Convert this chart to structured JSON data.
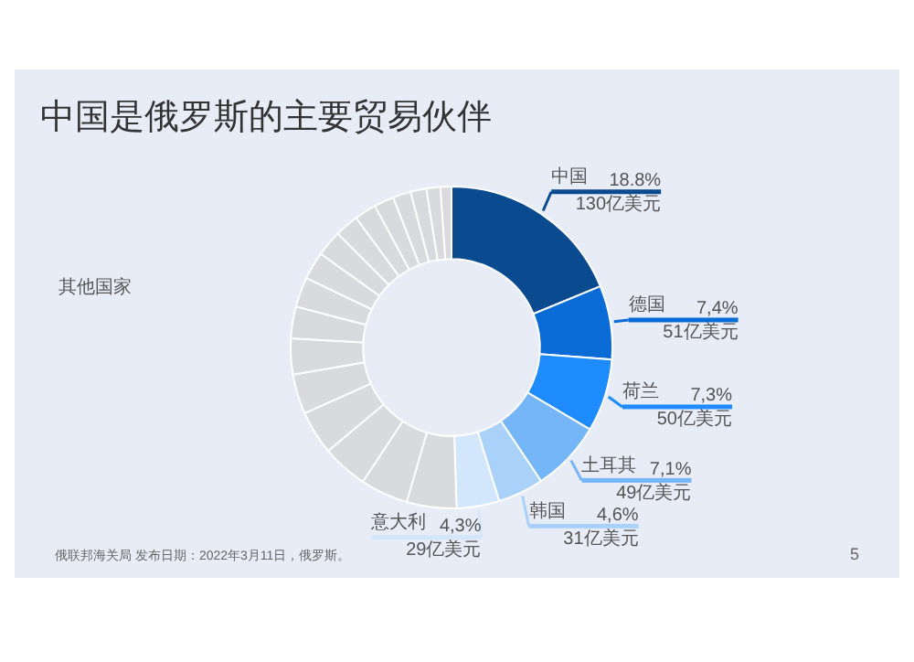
{
  "chart_data": {
    "type": "donut",
    "title": "中国是俄罗斯的主要贸易伙伴",
    "categories": [
      "中国",
      "德国",
      "荷兰",
      "土耳其",
      "韩国",
      "意大利",
      null,
      null,
      null,
      null,
      null,
      null,
      null,
      null,
      null,
      null,
      null,
      null,
      null,
      null,
      null,
      null,
      null
    ],
    "values": [
      18.8,
      7.4,
      7.3,
      7.1,
      4.6,
      4.3,
      5.0,
      4.8,
      4.6,
      4.4,
      4.0,
      3.6,
      3.2,
      3.0,
      2.8,
      2.6,
      2.4,
      2.2,
      2.0,
      1.8,
      1.6,
      1.4,
      1.1
    ],
    "colors": [
      "#0a4a8f",
      "#0a6ad6",
      "#1e8cff",
      "#74b6f7",
      "#a9d1f9",
      "#d2e7fb",
      "#d9dadd",
      "#d9dadd",
      "#d9dadd",
      "#d9dadd",
      "#d9dadd",
      "#d9dadd",
      "#d9dadd",
      "#d9dadd",
      "#d9dadd",
      "#d9dadd",
      "#d9dadd",
      "#d9dadd",
      "#d9dadd",
      "#d9dadd",
      "#d9dadd",
      "#d9dadd",
      "#d9dadd"
    ],
    "value_labels": [
      "18.8%\n130亿美元",
      "7,4%\n51亿美元",
      "7,3%\n50亿美元",
      "7,1%\n49亿美元",
      "4,6%\n31亿美元",
      "4,3%\n29亿美元",
      null,
      null,
      null,
      null,
      null,
      null,
      null,
      null,
      null,
      null,
      null,
      null,
      null,
      null,
      null,
      null,
      null
    ],
    "annotations": [
      "其他国家",
      "俄联邦海关局 发布日期：2022年3月11日，俄罗斯。",
      "5"
    ]
  }
}
